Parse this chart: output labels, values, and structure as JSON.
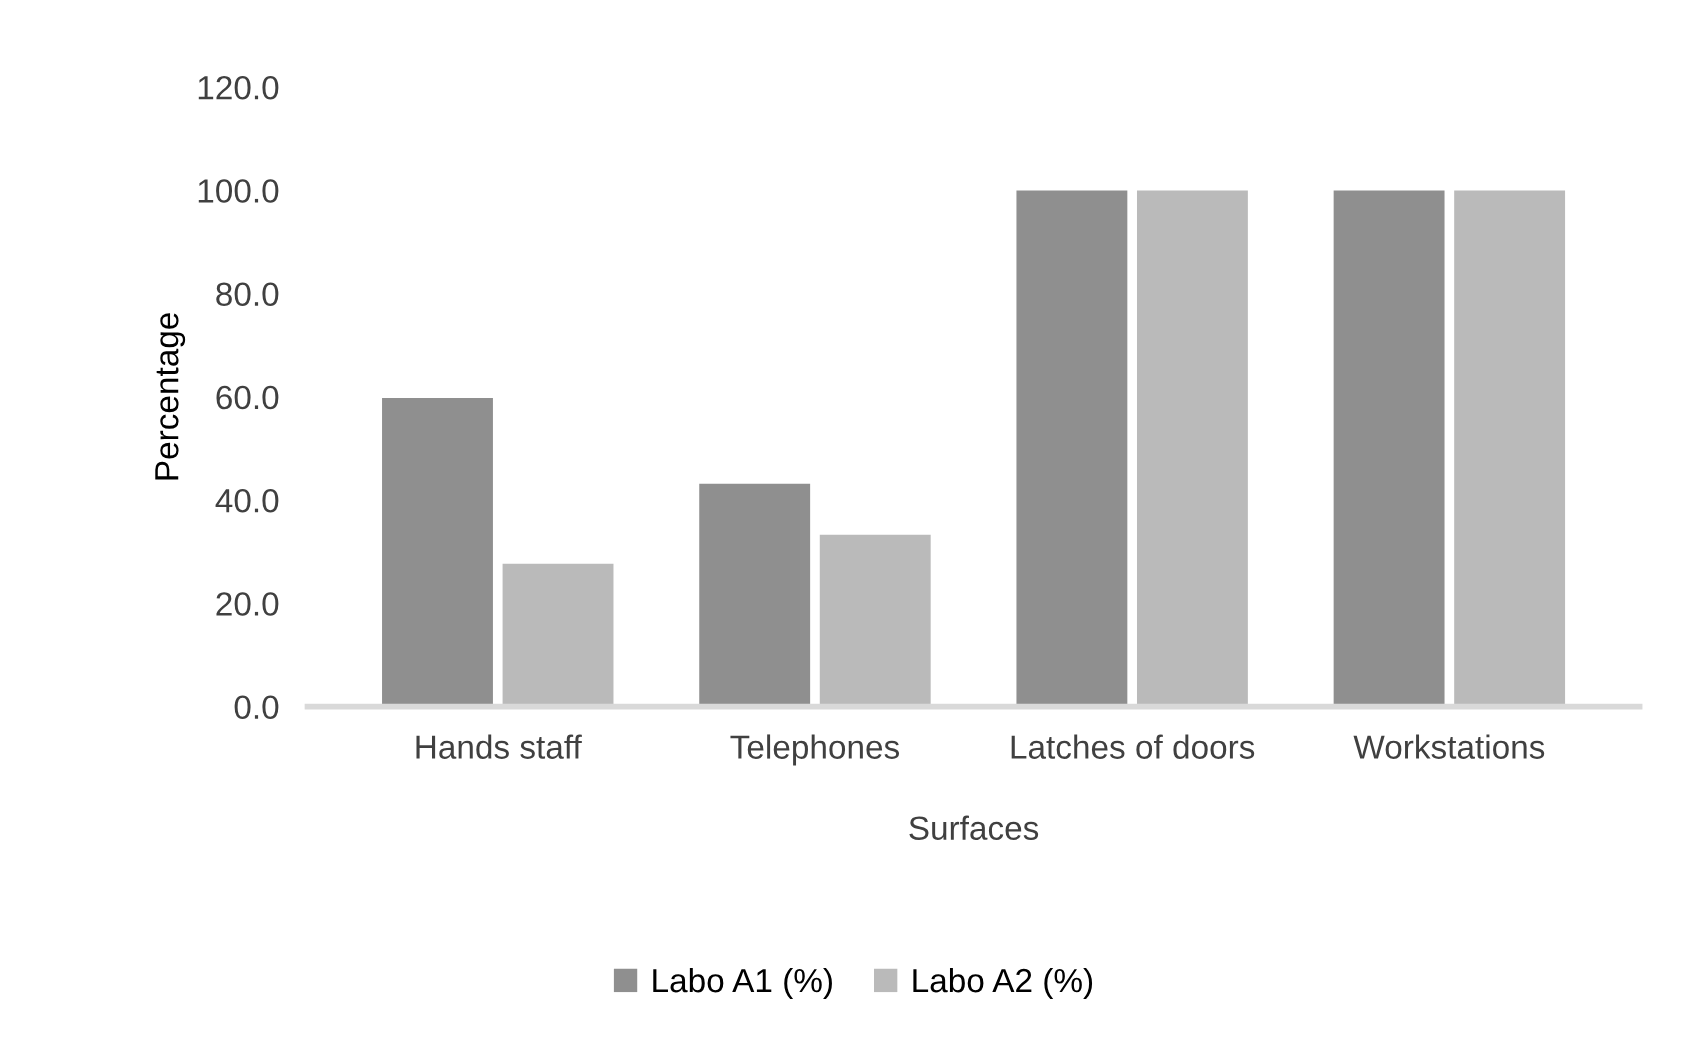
{
  "chart_data": {
    "type": "bar",
    "xlabel": "Surfaces",
    "ylabel": "Percentage",
    "categories": [
      "Hands staff",
      "Telephones",
      "Latches of doors",
      "Workstations"
    ],
    "series": [
      {
        "name": "Labo A1 (%)",
        "color": "#8f8f8f",
        "values": [
          59.8,
          43.2,
          100,
          100
        ]
      },
      {
        "name": "Labo A2 (%)",
        "color": "#bababa",
        "values": [
          27.7,
          33.3,
          100,
          100
        ]
      }
    ],
    "ylim": [
      0,
      120
    ],
    "yticks": [
      {
        "value": 0,
        "label": "0.0"
      },
      {
        "value": 20,
        "label": "20.0"
      },
      {
        "value": 40,
        "label": "40.0"
      },
      {
        "value": 60,
        "label": "60.0"
      },
      {
        "value": 80,
        "label": "80.0"
      },
      {
        "value": 100,
        "label": "100.0"
      },
      {
        "value": 120,
        "label": "120.0"
      }
    ],
    "grid": false,
    "legend": "bottom"
  }
}
